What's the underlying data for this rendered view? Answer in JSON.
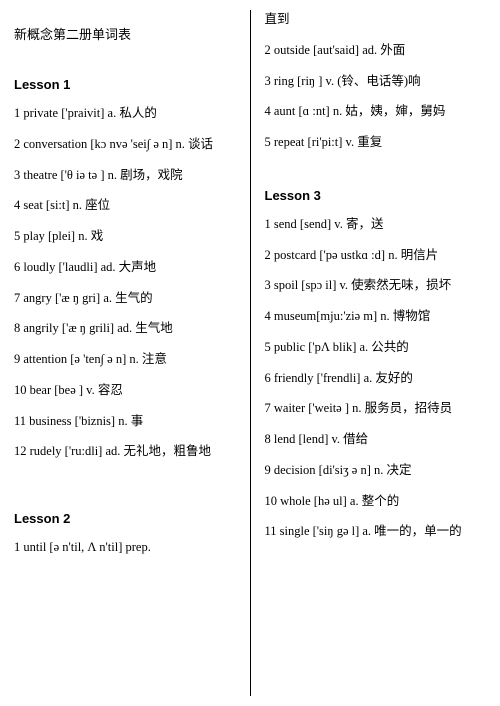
{
  "doc_title": "新概念第二册单词表",
  "left": {
    "lesson1_heading": "Lesson 1",
    "l1": [
      "1 private    ['praivit] a. 私人的",
      "2 conversation [kɔ nvə 'sei∫ ə n] n. 谈话",
      "3 theatre   ['θ iə tə ] n. 剧场，戏院",
      "4 seat [si:t] n. 座位",
      "5 play [plei] n. 戏",
      "6 loudly ['laudli] ad. 大声地",
      "7 angry ['æ ŋ gri] a. 生气的",
      "8 angrily    ['æ ŋ grili] ad. 生气地",
      "9 attention [ə 'ten∫ ə n] n. 注意",
      "10 bear      [beə ] v. 容忍",
      "11 business ['biznis] n. 事",
      "12 rudely ['ru:dli] ad. 无礼地，粗鲁地"
    ],
    "lesson2_heading": "Lesson 2",
    "l2": [
      "1 until [ə n'til, Λ n'til] prep."
    ]
  },
  "right": {
    "cont": "直到",
    "l2r": [
      "2 outside [aut'said] ad. 外面",
      "3 ring [riŋ ] v. (铃、电话等)响",
      "4 aunt [ɑ :nt] n. 姑，姨，婶，舅妈",
      "5 repeat [ri'pi:t] v. 重复"
    ],
    "lesson3_heading": "Lesson 3",
    "l3": [
      "1 send [send] v. 寄，送",
      "2 postcard ['pə ustkɑ :d] n. 明信片",
      "3 spoil [spɔ il] v. 使索然无味，损坏",
      "4 museum[mju:'ziə m] n. 博物馆",
      "5 public ['pΛ blik] a. 公共的",
      "6 friendly ['frendli] a. 友好的",
      "7 waiter ['weitə ] n. 服务员，招待员",
      "8 lend [lend] v. 借给",
      "9 decision [di'siʒ ə n] n. 决定",
      "10 whole [hə ul] a. 整个的",
      "11 single ['siŋ gə l] a. 唯一的，单一的"
    ]
  }
}
